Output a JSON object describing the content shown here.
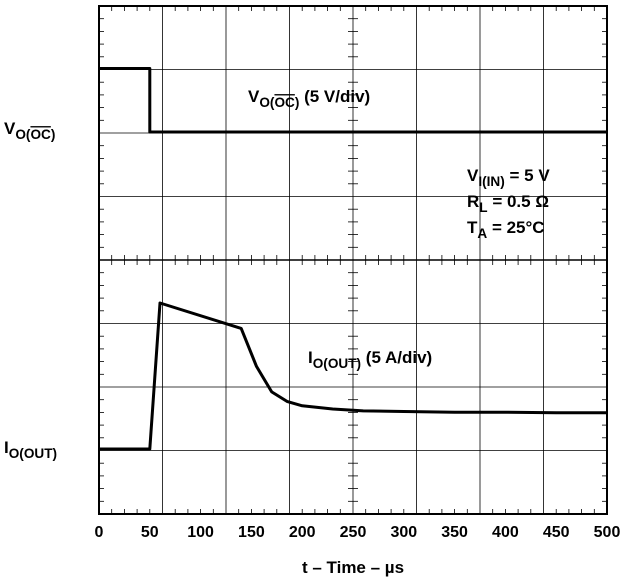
{
  "chart_data": {
    "type": "line",
    "xlabel": "t – Time – µs",
    "xlim": [
      0,
      500
    ],
    "x_ticks": [
      "0",
      "50",
      "100",
      "150",
      "200",
      "250",
      "300",
      "350",
      "400",
      "450",
      "500"
    ],
    "grid": true,
    "series": [
      {
        "name": "V_O(OC) (5 V/div)",
        "y_unit": "div",
        "ground_label": "V_O(OC)",
        "x": [
          0,
          50,
          50,
          500
        ],
        "y": [
          1.0,
          1.0,
          0.0,
          0.0
        ]
      },
      {
        "name": "I_O(OUT) (5 A/div)",
        "y_unit": "div",
        "ground_label": "I_O(OUT)",
        "x": [
          0,
          50,
          60,
          140,
          155,
          170,
          185,
          200,
          230,
          260,
          300,
          350,
          400,
          450,
          500
        ],
        "y": [
          0.0,
          0.0,
          2.3,
          1.9,
          1.3,
          0.9,
          0.75,
          0.68,
          0.63,
          0.6,
          0.59,
          0.58,
          0.58,
          0.57,
          0.57
        ]
      }
    ],
    "conditions": [
      "V_I(IN) = 5 V",
      "R_L = 0.5 Ω",
      "T_A = 25°C"
    ]
  }
}
